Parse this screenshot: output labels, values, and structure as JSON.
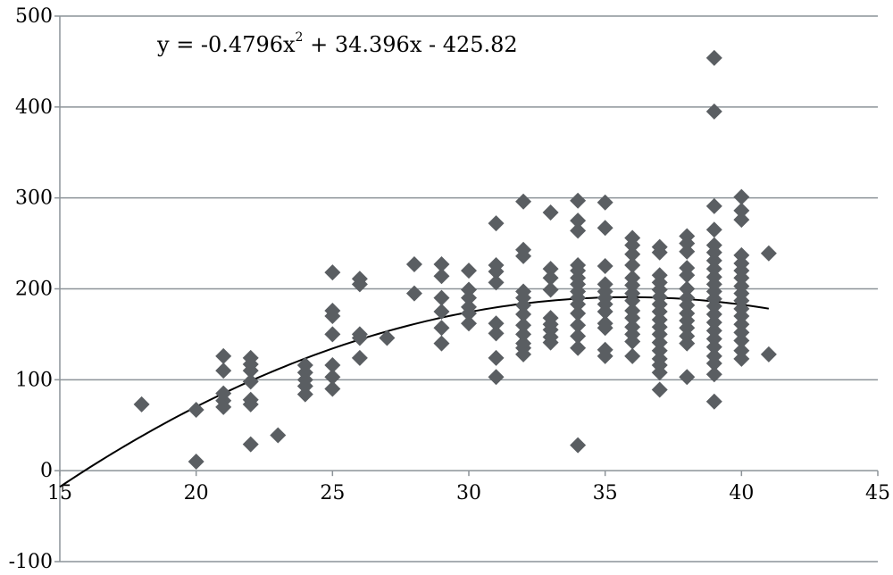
{
  "chart_data": {
    "type": "scatter",
    "title": "",
    "xlabel": "",
    "ylabel": "",
    "xlim": [
      15,
      45
    ],
    "ylim": [
      -100,
      500
    ],
    "x_ticks": [
      15,
      20,
      25,
      30,
      35,
      40,
      45
    ],
    "y_ticks": [
      -100,
      0,
      100,
      200,
      300,
      400,
      500
    ],
    "grid": "horizontal",
    "marker": "diamond",
    "colors": {
      "marker": "#5a5e62",
      "trendline": "#000000",
      "grid": "#8c9398",
      "axis": "#8c9398"
    },
    "trendline": {
      "type": "polynomial",
      "coefficients": [
        -0.4796,
        34.396,
        -425.82
      ],
      "x_range": [
        15,
        41
      ],
      "equation_parts": {
        "left": "y = -0.4796x",
        "exponent": "2",
        "right": " + 34.396x - 425.82"
      }
    },
    "points": [
      [
        18,
        73
      ],
      [
        20,
        67
      ],
      [
        20,
        10
      ],
      [
        21,
        126
      ],
      [
        21,
        110
      ],
      [
        21,
        85
      ],
      [
        21,
        77
      ],
      [
        21,
        70
      ],
      [
        22,
        124
      ],
      [
        22,
        117
      ],
      [
        22,
        110
      ],
      [
        22,
        98
      ],
      [
        22,
        78
      ],
      [
        22,
        73
      ],
      [
        22,
        29
      ],
      [
        23,
        39
      ],
      [
        24,
        116
      ],
      [
        24,
        108
      ],
      [
        24,
        100
      ],
      [
        24,
        93
      ],
      [
        24,
        84
      ],
      [
        25,
        218
      ],
      [
        25,
        176
      ],
      [
        25,
        170
      ],
      [
        25,
        150
      ],
      [
        25,
        116
      ],
      [
        25,
        103
      ],
      [
        25,
        90
      ],
      [
        26,
        211
      ],
      [
        26,
        205
      ],
      [
        26,
        150
      ],
      [
        26,
        146
      ],
      [
        26,
        124
      ],
      [
        27,
        146
      ],
      [
        28,
        227
      ],
      [
        28,
        195
      ],
      [
        29,
        227
      ],
      [
        29,
        214
      ],
      [
        29,
        190
      ],
      [
        29,
        175
      ],
      [
        29,
        157
      ],
      [
        29,
        140
      ],
      [
        30,
        220
      ],
      [
        30,
        199
      ],
      [
        30,
        190
      ],
      [
        30,
        180
      ],
      [
        30,
        173
      ],
      [
        30,
        162
      ],
      [
        31,
        272
      ],
      [
        31,
        226
      ],
      [
        31,
        219
      ],
      [
        31,
        207
      ],
      [
        31,
        162
      ],
      [
        31,
        151
      ],
      [
        31,
        124
      ],
      [
        31,
        103
      ],
      [
        32,
        296
      ],
      [
        32,
        243
      ],
      [
        32,
        236
      ],
      [
        32,
        197
      ],
      [
        32,
        190
      ],
      [
        32,
        182
      ],
      [
        32,
        172
      ],
      [
        32,
        160
      ],
      [
        32,
        150
      ],
      [
        32,
        140
      ],
      [
        32,
        135
      ],
      [
        32,
        128
      ],
      [
        33,
        284
      ],
      [
        33,
        222
      ],
      [
        33,
        212
      ],
      [
        33,
        199
      ],
      [
        33,
        168
      ],
      [
        33,
        161
      ],
      [
        33,
        155
      ],
      [
        33,
        147
      ],
      [
        33,
        141
      ],
      [
        34,
        297
      ],
      [
        34,
        275
      ],
      [
        34,
        264
      ],
      [
        34,
        226
      ],
      [
        34,
        220
      ],
      [
        34,
        212
      ],
      [
        34,
        205
      ],
      [
        34,
        197
      ],
      [
        34,
        190
      ],
      [
        34,
        183
      ],
      [
        34,
        173
      ],
      [
        34,
        160
      ],
      [
        34,
        148
      ],
      [
        34,
        135
      ],
      [
        34,
        28
      ],
      [
        35,
        295
      ],
      [
        35,
        267
      ],
      [
        35,
        225
      ],
      [
        35,
        205
      ],
      [
        35,
        197
      ],
      [
        35,
        190
      ],
      [
        35,
        183
      ],
      [
        35,
        175
      ],
      [
        35,
        162
      ],
      [
        35,
        157
      ],
      [
        35,
        133
      ],
      [
        35,
        126
      ],
      [
        36,
        256
      ],
      [
        36,
        248
      ],
      [
        36,
        238
      ],
      [
        36,
        226
      ],
      [
        36,
        212
      ],
      [
        36,
        204
      ],
      [
        36,
        195
      ],
      [
        36,
        187
      ],
      [
        36,
        176
      ],
      [
        36,
        168
      ],
      [
        36,
        158
      ],
      [
        36,
        150
      ],
      [
        36,
        142
      ],
      [
        36,
        126
      ],
      [
        37,
        246
      ],
      [
        37,
        240
      ],
      [
        37,
        215
      ],
      [
        37,
        207
      ],
      [
        37,
        199
      ],
      [
        37,
        191
      ],
      [
        37,
        183
      ],
      [
        37,
        175
      ],
      [
        37,
        166
      ],
      [
        37,
        158
      ],
      [
        37,
        150
      ],
      [
        37,
        141
      ],
      [
        37,
        132
      ],
      [
        37,
        123
      ],
      [
        37,
        116
      ],
      [
        37,
        108
      ],
      [
        37,
        89
      ],
      [
        38,
        258
      ],
      [
        38,
        250
      ],
      [
        38,
        241
      ],
      [
        38,
        223
      ],
      [
        38,
        215
      ],
      [
        38,
        200
      ],
      [
        38,
        190
      ],
      [
        38,
        182
      ],
      [
        38,
        173
      ],
      [
        38,
        165
      ],
      [
        38,
        157
      ],
      [
        38,
        148
      ],
      [
        38,
        140
      ],
      [
        38,
        103
      ],
      [
        39,
        454
      ],
      [
        39,
        395
      ],
      [
        39,
        291
      ],
      [
        39,
        265
      ],
      [
        39,
        248
      ],
      [
        39,
        240
      ],
      [
        39,
        231
      ],
      [
        39,
        222
      ],
      [
        39,
        213
      ],
      [
        39,
        205
      ],
      [
        39,
        197
      ],
      [
        39,
        189
      ],
      [
        39,
        181
      ],
      [
        39,
        172
      ],
      [
        39,
        163
      ],
      [
        39,
        154
      ],
      [
        39,
        145
      ],
      [
        39,
        136
      ],
      [
        39,
        126
      ],
      [
        39,
        118
      ],
      [
        39,
        106
      ],
      [
        39,
        76
      ],
      [
        40,
        301
      ],
      [
        40,
        286
      ],
      [
        40,
        276
      ],
      [
        40,
        237
      ],
      [
        40,
        228
      ],
      [
        40,
        220
      ],
      [
        40,
        212
      ],
      [
        40,
        203
      ],
      [
        40,
        195
      ],
      [
        40,
        187
      ],
      [
        40,
        178
      ],
      [
        40,
        170
      ],
      [
        40,
        161
      ],
      [
        40,
        152
      ],
      [
        40,
        143
      ],
      [
        40,
        132
      ],
      [
        40,
        123
      ],
      [
        41,
        239
      ],
      [
        41,
        128
      ]
    ]
  }
}
